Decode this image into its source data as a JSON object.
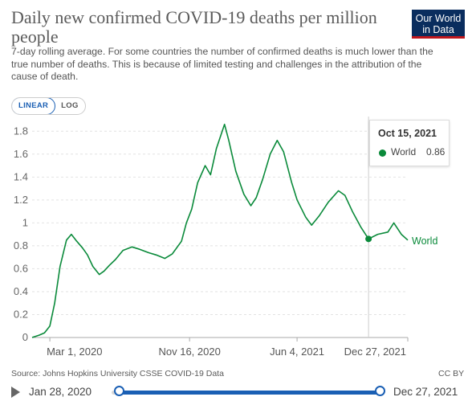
{
  "header": {
    "title": "Daily new confirmed COVID-19 deaths per million people",
    "subtitle": "7-day rolling average. For some countries the number of confirmed deaths is much lower than the true number of deaths. This is because of limited testing and challenges in the attribution of the cause of death.",
    "logo_line1": "Our World",
    "logo_line2": "in Data"
  },
  "controls": {
    "linear_label": "LINEAR",
    "log_label": "LOG",
    "selected_scale": "linear"
  },
  "tooltip": {
    "date": "Oct 15, 2021",
    "series": "World",
    "value": "0.86"
  },
  "footer": {
    "source": "Source: Johns Hopkins University CSSE COVID-19 Data",
    "license": "CC BY"
  },
  "timeline": {
    "start_label": "Jan 28, 2020",
    "end_label": "Dec 27, 2021"
  },
  "colors": {
    "line": "#0a8a3a",
    "accent": "#1a5fb4",
    "logo_bg": "#0a2d5e",
    "logo_bar": "#c0171d"
  },
  "chart_data": {
    "type": "line",
    "title": "Daily new confirmed COVID-19 deaths per million people",
    "ylim": [
      0,
      1.9
    ],
    "yticks": [
      "0",
      "0.2",
      "0.4",
      "0.6",
      "0.8",
      "1",
      "1.2",
      "1.4",
      "1.6",
      "1.8"
    ],
    "xticks": [
      "Mar 1, 2020",
      "Nov 16, 2020",
      "Jun 4, 2021",
      "Dec 27, 2021"
    ],
    "grid": "horizontal",
    "series": [
      {
        "name": "World",
        "points": [
          [
            "2020-01-28",
            0.0
          ],
          [
            "2020-02-10",
            0.02
          ],
          [
            "2020-02-20",
            0.04
          ],
          [
            "2020-03-01",
            0.1
          ],
          [
            "2020-03-10",
            0.3
          ],
          [
            "2020-03-20",
            0.62
          ],
          [
            "2020-04-01",
            0.85
          ],
          [
            "2020-04-10",
            0.9
          ],
          [
            "2020-04-20",
            0.84
          ],
          [
            "2020-05-01",
            0.78
          ],
          [
            "2020-05-10",
            0.72
          ],
          [
            "2020-05-20",
            0.62
          ],
          [
            "2020-06-01",
            0.55
          ],
          [
            "2020-06-10",
            0.58
          ],
          [
            "2020-06-20",
            0.63
          ],
          [
            "2020-07-01",
            0.68
          ],
          [
            "2020-07-15",
            0.76
          ],
          [
            "2020-08-01",
            0.79
          ],
          [
            "2020-08-15",
            0.77
          ],
          [
            "2020-09-01",
            0.74
          ],
          [
            "2020-09-15",
            0.72
          ],
          [
            "2020-10-01",
            0.69
          ],
          [
            "2020-10-15",
            0.73
          ],
          [
            "2020-11-01",
            0.84
          ],
          [
            "2020-11-10",
            1.0
          ],
          [
            "2020-11-20",
            1.12
          ],
          [
            "2020-12-01",
            1.35
          ],
          [
            "2020-12-15",
            1.5
          ],
          [
            "2020-12-25",
            1.42
          ],
          [
            "2021-01-05",
            1.65
          ],
          [
            "2021-01-20",
            1.86
          ],
          [
            "2021-01-28",
            1.72
          ],
          [
            "2021-02-10",
            1.45
          ],
          [
            "2021-02-25",
            1.25
          ],
          [
            "2021-03-10",
            1.15
          ],
          [
            "2021-03-20",
            1.22
          ],
          [
            "2021-04-01",
            1.38
          ],
          [
            "2021-04-15",
            1.6
          ],
          [
            "2021-04-28",
            1.72
          ],
          [
            "2021-05-10",
            1.62
          ],
          [
            "2021-05-25",
            1.35
          ],
          [
            "2021-06-04",
            1.2
          ],
          [
            "2021-06-20",
            1.05
          ],
          [
            "2021-07-01",
            0.98
          ],
          [
            "2021-07-15",
            1.06
          ],
          [
            "2021-08-01",
            1.18
          ],
          [
            "2021-08-20",
            1.28
          ],
          [
            "2021-09-01",
            1.24
          ],
          [
            "2021-09-15",
            1.1
          ],
          [
            "2021-10-01",
            0.96
          ],
          [
            "2021-10-15",
            0.86
          ],
          [
            "2021-11-01",
            0.9
          ],
          [
            "2021-11-20",
            0.92
          ],
          [
            "2021-12-01",
            1.0
          ],
          [
            "2021-12-15",
            0.9
          ],
          [
            "2021-12-27",
            0.85
          ]
        ]
      }
    ],
    "highlight": {
      "x": "2021-10-15",
      "y": 0.86
    }
  }
}
